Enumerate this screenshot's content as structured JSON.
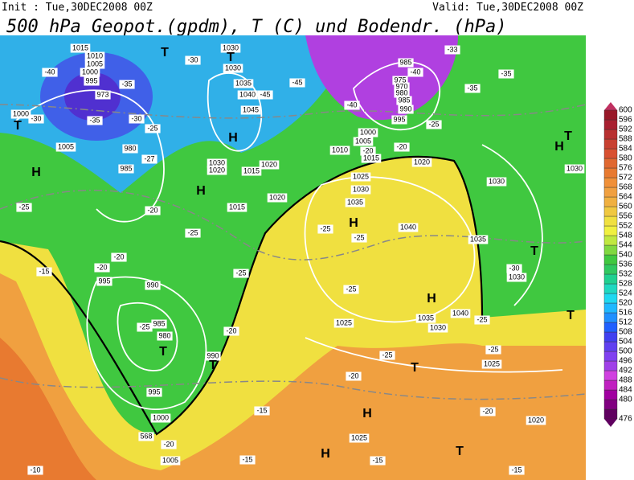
{
  "header": {
    "init": "Init : Tue,30DEC2008 00Z",
    "valid": "Valid: Tue,30DEC2008 00Z",
    "title": "500 hPa Geopot.(gpdm), T (C) und Bodendr. (hPa)"
  },
  "map": {
    "labels": [
      "1015",
      "1010",
      "1005",
      "1000",
      "995",
      "973",
      "-40",
      "-35",
      "-30",
      "1000",
      "T",
      "-35",
      "-30",
      "-25",
      "1005",
      "980",
      "-27",
      "985",
      "H",
      "-25",
      "-20",
      "-25",
      "-20",
      "-20",
      "995",
      "-15",
      "990",
      "985",
      "-25",
      "980",
      "T",
      "-20",
      "990",
      "T",
      "995",
      "1000",
      "568",
      "-20",
      "1005",
      "-10",
      "-15",
      "1030",
      "T",
      "1030",
      "T",
      "-30",
      "1035",
      "1040",
      "-45",
      "1045",
      "-45",
      "H",
      "1030",
      "1020",
      "1015",
      "1020",
      "H",
      "1015",
      "1020",
      "-25",
      "985",
      "-40",
      "975",
      "970",
      "980",
      "985",
      "990",
      "995",
      "-33",
      "-35",
      "-40",
      "-35",
      "1000",
      "1005",
      "-20",
      "1010",
      "1015",
      "-20",
      "1020",
      "-25",
      "H",
      "T",
      "1030",
      "1030",
      "1025",
      "1030",
      "1035",
      "H",
      "-25",
      "-25",
      "1040",
      "1035",
      "T",
      "-30",
      "1030",
      "-25",
      "H",
      "1040",
      "1035",
      "1030",
      "1025",
      "-25",
      "T",
      "-25",
      "-25",
      "1025",
      "T",
      "-20",
      "-20",
      "1020",
      "H",
      "1025",
      "T",
      "H",
      "-15",
      "-15",
      "-15"
    ]
  },
  "colorbar": {
    "values": [
      476,
      480,
      484,
      488,
      492,
      496,
      500,
      504,
      508,
      512,
      516,
      520,
      524,
      528,
      532,
      536,
      540,
      544,
      548,
      552,
      556,
      560,
      564,
      568,
      572,
      576,
      580,
      584,
      588,
      592,
      596,
      600
    ],
    "colors": [
      "#600060",
      "#800080",
      "#a000a0",
      "#c020c0",
      "#d040e0",
      "#a040e8",
      "#8040f0",
      "#6040f0",
      "#4040f0",
      "#2060ff",
      "#2090ff",
      "#20b8ff",
      "#20d8f0",
      "#20d8c0",
      "#20d090",
      "#30c860",
      "#40c840",
      "#80d840",
      "#c0e840",
      "#f0f040",
      "#f0e040",
      "#f0c840",
      "#f0b040",
      "#f0a040",
      "#f09038",
      "#e87a30",
      "#e06830",
      "#d85030",
      "#c84030",
      "#b83030",
      "#a82030",
      "#981828"
    ]
  }
}
